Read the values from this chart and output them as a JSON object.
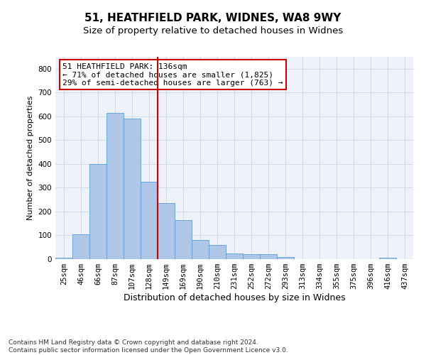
{
  "title1": "51, HEATHFIELD PARK, WIDNES, WA8 9WY",
  "title2": "Size of property relative to detached houses in Widnes",
  "xlabel": "Distribution of detached houses by size in Widnes",
  "ylabel": "Number of detached properties",
  "categories": [
    "25sqm",
    "46sqm",
    "66sqm",
    "87sqm",
    "107sqm",
    "128sqm",
    "149sqm",
    "169sqm",
    "190sqm",
    "210sqm",
    "231sqm",
    "252sqm",
    "272sqm",
    "293sqm",
    "313sqm",
    "334sqm",
    "355sqm",
    "375sqm",
    "396sqm",
    "416sqm",
    "437sqm"
  ],
  "values": [
    5,
    105,
    400,
    615,
    590,
    325,
    235,
    165,
    80,
    60,
    25,
    20,
    20,
    10,
    0,
    0,
    0,
    0,
    0,
    5,
    0
  ],
  "bar_color": "#aec6e8",
  "bar_edge_color": "#5a9fd4",
  "vline_x": 5.5,
  "vline_color": "#cc0000",
  "annotation_text": "51 HEATHFIELD PARK: 136sqm\n← 71% of detached houses are smaller (1,825)\n29% of semi-detached houses are larger (763) →",
  "annotation_box_color": "#ffffff",
  "annotation_box_edge": "#cc0000",
  "ylim": [
    0,
    850
  ],
  "yticks": [
    0,
    100,
    200,
    300,
    400,
    500,
    600,
    700,
    800
  ],
  "grid_color": "#d0dae8",
  "background_color": "#eef2f8",
  "footnote": "Contains HM Land Registry data © Crown copyright and database right 2024.\nContains public sector information licensed under the Open Government Licence v3.0.",
  "title1_fontsize": 11,
  "title2_fontsize": 9.5,
  "xlabel_fontsize": 9,
  "ylabel_fontsize": 8,
  "tick_fontsize": 7.5,
  "annotation_fontsize": 8,
  "footnote_fontsize": 6.5
}
